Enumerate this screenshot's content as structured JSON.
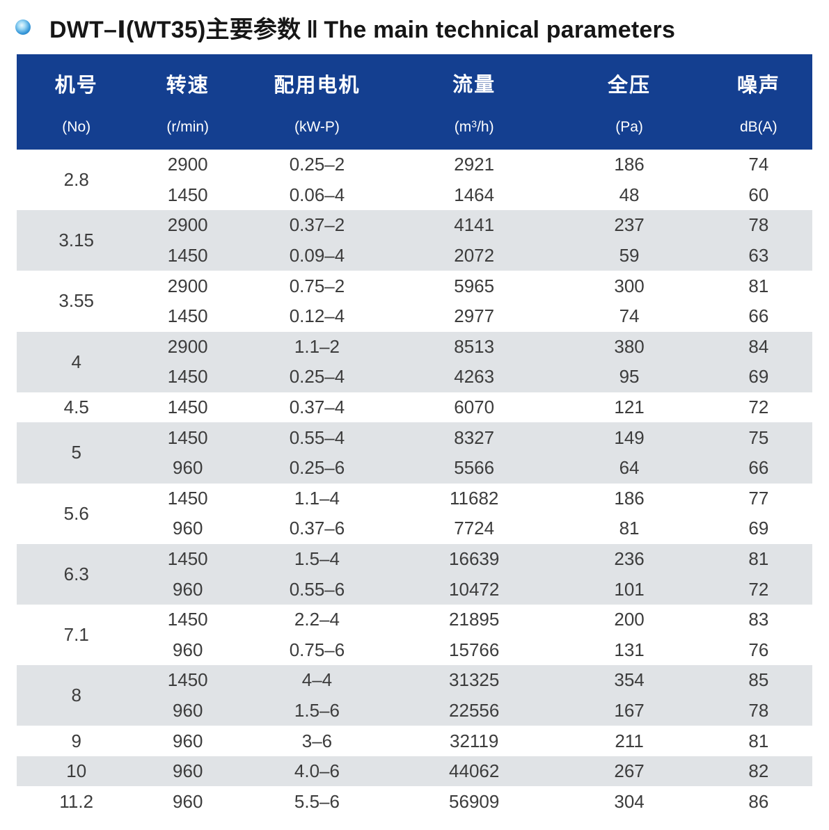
{
  "title": {
    "model": "DWT–Ⅰ(WT35)主要参数",
    "separator": "‖",
    "english": "The main technical parameters"
  },
  "accent_colors": {
    "header_background": "#143f90",
    "shade_row_background": "#e0e3e6",
    "body_text": "#3c3c3c",
    "bullet_blue": "#0c63ad"
  },
  "table": {
    "column_keys": [
      "no",
      "speed",
      "motor",
      "flow",
      "pressure",
      "noise"
    ],
    "columns": [
      {
        "zh": "机号",
        "en": "(No)"
      },
      {
        "zh": "转速",
        "en": "(r/min)"
      },
      {
        "zh": "配用电机",
        "en": "(kW-P)"
      },
      {
        "zh": "流量",
        "en_pre": "(m",
        "en_sup": "3",
        "en_post": "/h)"
      },
      {
        "zh": "全压",
        "en": "(Pa)"
      },
      {
        "zh": "噪声",
        "en": "dB(A)"
      }
    ],
    "groups": [
      {
        "no": "2.8",
        "rows": [
          [
            "2900",
            "0.25–2",
            "2921",
            "186",
            "74"
          ],
          [
            "1450",
            "0.06–4",
            "1464",
            "48",
            "60"
          ]
        ]
      },
      {
        "no": "3.15",
        "rows": [
          [
            "2900",
            "0.37–2",
            "4141",
            "237",
            "78"
          ],
          [
            "1450",
            "0.09–4",
            "2072",
            "59",
            "63"
          ]
        ]
      },
      {
        "no": "3.55",
        "rows": [
          [
            "2900",
            "0.75–2",
            "5965",
            "300",
            "81"
          ],
          [
            "1450",
            "0.12–4",
            "2977",
            "74",
            "66"
          ]
        ]
      },
      {
        "no": "4",
        "rows": [
          [
            "2900",
            "1.1–2",
            "8513",
            "380",
            "84"
          ],
          [
            "1450",
            "0.25–4",
            "4263",
            "95",
            "69"
          ]
        ]
      },
      {
        "no": "4.5",
        "rows": [
          [
            "1450",
            "0.37–4",
            "6070",
            "121",
            "72"
          ]
        ]
      },
      {
        "no": "5",
        "rows": [
          [
            "1450",
            "0.55–4",
            "8327",
            "149",
            "75"
          ],
          [
            "960",
            "0.25–6",
            "5566",
            "64",
            "66"
          ]
        ]
      },
      {
        "no": "5.6",
        "rows": [
          [
            "1450",
            "1.1–4",
            "11682",
            "186",
            "77"
          ],
          [
            "960",
            "0.37–6",
            "7724",
            "81",
            "69"
          ]
        ]
      },
      {
        "no": "6.3",
        "rows": [
          [
            "1450",
            "1.5–4",
            "16639",
            "236",
            "81"
          ],
          [
            "960",
            "0.55–6",
            "10472",
            "101",
            "72"
          ]
        ]
      },
      {
        "no": "7.1",
        "rows": [
          [
            "1450",
            "2.2–4",
            "21895",
            "200",
            "83"
          ],
          [
            "960",
            "0.75–6",
            "15766",
            "131",
            "76"
          ]
        ]
      },
      {
        "no": "8",
        "rows": [
          [
            "1450",
            "4–4",
            "31325",
            "354",
            "85"
          ],
          [
            "960",
            "1.5–6",
            "22556",
            "167",
            "78"
          ]
        ]
      },
      {
        "no": "9",
        "rows": [
          [
            "960",
            "3–6",
            "32119",
            "211",
            "81"
          ]
        ]
      },
      {
        "no": "10",
        "rows": [
          [
            "960",
            "4.0–6",
            "44062",
            "267",
            "82"
          ]
        ]
      },
      {
        "no": "11.2",
        "rows": [
          [
            "960",
            "5.5–6",
            "56909",
            "304",
            "86"
          ]
        ]
      }
    ]
  }
}
